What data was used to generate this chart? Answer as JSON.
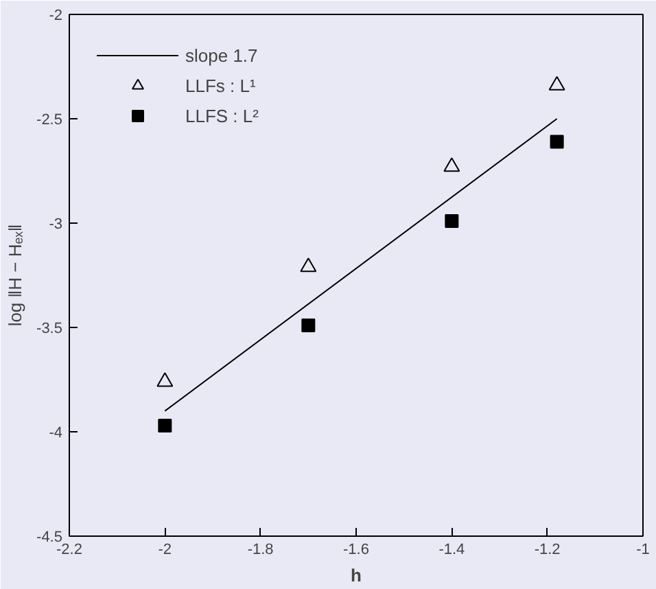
{
  "chart_data": {
    "type": "scatter",
    "xlabel": "h",
    "ylabel": "log ‖H − Hₑₓ‖",
    "xlim": [
      -2.2,
      -1
    ],
    "ylim": [
      -4.5,
      -2
    ],
    "xticks": [
      -2.2,
      -2,
      -1.8,
      -1.6,
      -1.4,
      -1.2,
      -1
    ],
    "yticks": [
      -4.5,
      -4,
      -3.5,
      -3,
      -2.5,
      -2
    ],
    "legend": "top left",
    "grid": false,
    "series": [
      {
        "name": "slope 1.7",
        "type": "line",
        "color": "#000000",
        "marker": "none",
        "line_style": "solid",
        "x": [
          -2,
          -1.18
        ],
        "values": [
          -3.9,
          -2.5
        ]
      },
      {
        "name": "LLFs : L¹",
        "color": "#000000",
        "marker": "triangle",
        "x": [
          -2,
          -1.7,
          -1.4,
          -1.18
        ],
        "values": [
          -3.76,
          -3.21,
          -2.73,
          -2.34
        ]
      },
      {
        "name": "LLFS : L²",
        "color": "#000000",
        "marker": "square",
        "x": [
          -2,
          -1.7,
          -1.4,
          -1.18
        ],
        "values": [
          -3.97,
          -3.49,
          -2.99,
          -2.61
        ]
      }
    ]
  }
}
